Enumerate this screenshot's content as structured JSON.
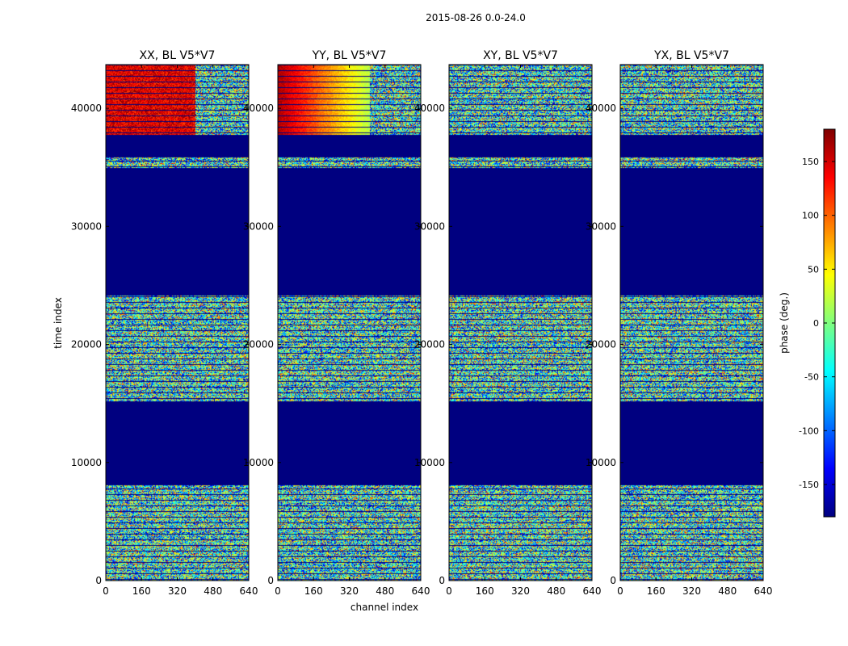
{
  "chart_data": {
    "type": "heatmap",
    "title": "2015-08-26 0.0-24.0",
    "xlabel": "channel index",
    "ylabel": "time index",
    "xlim": [
      0,
      640
    ],
    "ylim": [
      0,
      43700
    ],
    "xticks": [
      0,
      160,
      320,
      480,
      640
    ],
    "yticks": [
      0,
      10000,
      20000,
      30000,
      40000
    ],
    "panels": [
      {
        "title": "XX, BL V5*V7",
        "bright_split": 400
      },
      {
        "title": "YY, BL V5*V7",
        "bright_split": 410
      },
      {
        "title": "XY, BL V5*V7",
        "bright_split": null
      },
      {
        "title": "YX, BL V5*V7",
        "bright_split": null
      }
    ],
    "empty_time_ranges": [
      [
        8100,
        15200
      ],
      [
        24200,
        35000
      ],
      [
        35900,
        37800
      ]
    ],
    "colorbar": {
      "label": "phase (deg.)",
      "range": [
        -180,
        180
      ],
      "ticks": [
        -150,
        -100,
        -50,
        0,
        50,
        100,
        150
      ],
      "colormap": [
        "#00007f",
        "#0000ff",
        "#007fff",
        "#00ffff",
        "#7fff7f",
        "#ffff00",
        "#ff7f00",
        "#ff0000",
        "#7f0000"
      ]
    }
  }
}
